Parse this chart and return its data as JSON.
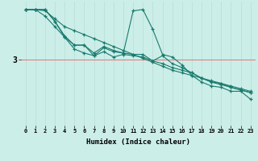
{
  "bg_color": "#cceee8",
  "line_color": "#1a7a6e",
  "grid_color_v": "#b8dcd8",
  "grid_color_h": "#f0c8c8",
  "hline_color": "#e08080",
  "xlabel": "Humidex (Indice chaleur)",
  "ytick_val": 3,
  "xlim": [
    -0.5,
    23.5
  ],
  "ylim": [
    0.5,
    5.2
  ],
  "series": {
    "line1": [
      4.9,
      4.9,
      4.85,
      4.55,
      4.25,
      4.1,
      3.95,
      3.8,
      3.65,
      3.5,
      3.35,
      3.2,
      3.05,
      2.9,
      2.75,
      2.6,
      2.5,
      2.4,
      2.3,
      2.2,
      2.1,
      2.0,
      1.9,
      1.8
    ],
    "line2": [
      4.9,
      4.9,
      4.65,
      4.25,
      3.85,
      3.55,
      3.55,
      3.25,
      3.5,
      3.35,
      3.25,
      4.85,
      4.9,
      4.15,
      3.2,
      3.1,
      2.8,
      2.4,
      2.15,
      2.0,
      1.95,
      1.8,
      1.8,
      1.5
    ],
    "line3": [
      4.9,
      4.9,
      4.9,
      4.45,
      3.9,
      3.55,
      3.55,
      3.15,
      3.45,
      3.3,
      3.25,
      3.2,
      3.2,
      2.95,
      3.15,
      2.85,
      2.7,
      2.5,
      2.3,
      2.15,
      2.1,
      1.95,
      1.85,
      1.75
    ],
    "line4": [
      4.9,
      4.9,
      4.9,
      4.45,
      3.85,
      3.4,
      3.25,
      3.15,
      3.3,
      3.1,
      3.2,
      3.15,
      3.1,
      2.95,
      2.85,
      2.7,
      2.6,
      2.5,
      2.3,
      2.15,
      2.05,
      1.95,
      1.85,
      1.75
    ]
  },
  "marker": "+",
  "markersize": 3,
  "linewidth": 0.8,
  "xlabel_fontsize": 6.5,
  "ytick_fontsize": 7,
  "xtick_fontsize": 5
}
